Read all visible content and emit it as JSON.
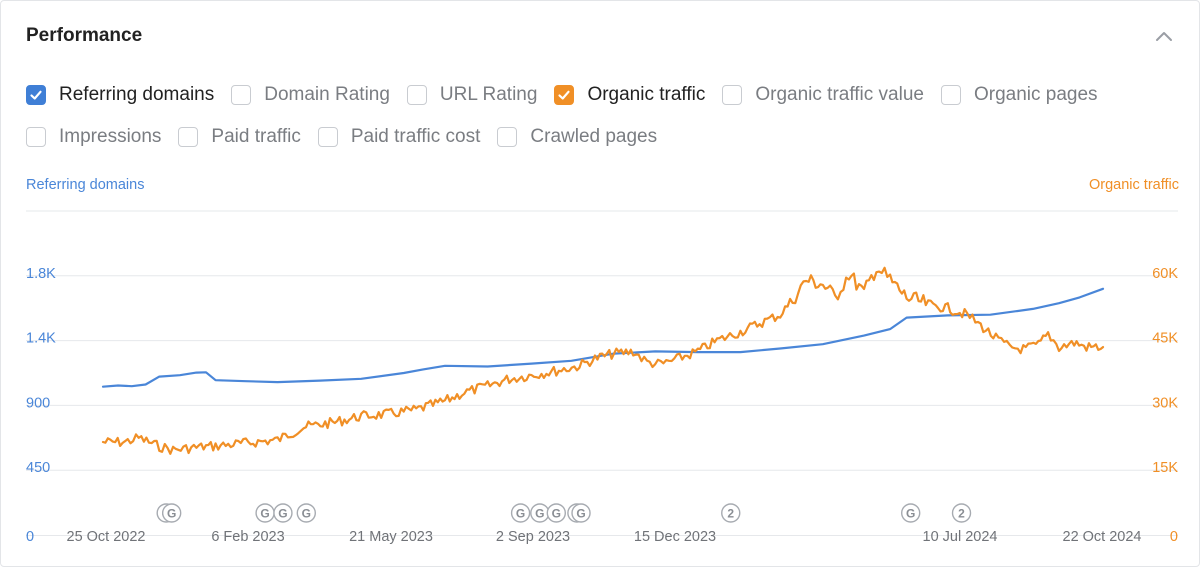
{
  "header": {
    "title": "Performance"
  },
  "metrics": [
    {
      "label": "Referring domains",
      "checked": true,
      "color": "#3f7fd6"
    },
    {
      "label": "Domain Rating",
      "checked": false
    },
    {
      "label": "URL Rating",
      "checked": false
    },
    {
      "label": "Organic traffic",
      "checked": true,
      "color": "#f08f26"
    },
    {
      "label": "Organic traffic value",
      "checked": false
    },
    {
      "label": "Organic pages",
      "checked": false
    },
    {
      "label": "Impressions",
      "checked": false
    },
    {
      "label": "Paid traffic",
      "checked": false
    },
    {
      "label": "Paid traffic cost",
      "checked": false
    },
    {
      "label": "Crawled pages",
      "checked": false
    }
  ],
  "icons": {
    "collapse": "chevron-up-icon",
    "checkmark": "checkmark-icon",
    "annotation": "google-update-marker-icon"
  },
  "colors": {
    "left_axis": "#4a86d8",
    "right_axis": "#f08f26",
    "grid": "#e6e8eb"
  },
  "chart_data": {
    "type": "line",
    "y_left_label": "Referring domains",
    "y_right_label": "Organic traffic",
    "y_left_ticks": [
      "0",
      "450",
      "900",
      "1.4K",
      "1.8K"
    ],
    "y_right_ticks": [
      "0",
      "15K",
      "30K",
      "45K",
      "60K"
    ],
    "y_left_lim": [
      0,
      2250
    ],
    "y_right_lim": [
      0,
      75000
    ],
    "x_tick_labels": [
      "25 Oct 2022",
      "6 Feb 2023",
      "21 May 2023",
      "2 Sep 2023",
      "15 Dec 2023",
      "10 Jul 2024",
      "22 Oct 2024"
    ],
    "x_range": [
      "2022-10-25",
      "2024-10-22"
    ],
    "grid": true,
    "series": [
      {
        "name": "Referring domains",
        "axis": "left",
        "color": "#4a86d8",
        "points": [
          [
            "2022-10-25",
            1030
          ],
          [
            "2022-11-05",
            1038
          ],
          [
            "2022-11-15",
            1033
          ],
          [
            "2022-11-25",
            1045
          ],
          [
            "2022-12-05",
            1100
          ],
          [
            "2022-12-20",
            1110
          ],
          [
            "2023-01-01",
            1128
          ],
          [
            "2023-01-08",
            1130
          ],
          [
            "2023-01-15",
            1075
          ],
          [
            "2023-02-06",
            1068
          ],
          [
            "2023-03-01",
            1062
          ],
          [
            "2023-04-01",
            1072
          ],
          [
            "2023-05-01",
            1085
          ],
          [
            "2023-06-01",
            1125
          ],
          [
            "2023-06-15",
            1150
          ],
          [
            "2023-07-01",
            1175
          ],
          [
            "2023-08-01",
            1170
          ],
          [
            "2023-09-02",
            1190
          ],
          [
            "2023-10-01",
            1210
          ],
          [
            "2023-11-01",
            1260
          ],
          [
            "2023-12-01",
            1275
          ],
          [
            "2024-01-01",
            1270
          ],
          [
            "2024-02-01",
            1270
          ],
          [
            "2024-03-01",
            1295
          ],
          [
            "2024-04-01",
            1325
          ],
          [
            "2024-05-01",
            1385
          ],
          [
            "2024-05-20",
            1430
          ],
          [
            "2024-06-01",
            1510
          ],
          [
            "2024-07-01",
            1525
          ],
          [
            "2024-08-01",
            1530
          ],
          [
            "2024-09-01",
            1570
          ],
          [
            "2024-09-20",
            1610
          ],
          [
            "2024-10-05",
            1650
          ],
          [
            "2024-10-22",
            1710
          ]
        ]
      },
      {
        "name": "Organic traffic",
        "axis": "right",
        "color": "#f08f26",
        "points": [
          [
            "2022-10-25",
            21500
          ],
          [
            "2022-11-10",
            21500
          ],
          [
            "2022-11-20",
            22500
          ],
          [
            "2022-12-05",
            20500
          ],
          [
            "2022-12-15",
            19700
          ],
          [
            "2023-01-01",
            20300
          ],
          [
            "2023-01-15",
            20600
          ],
          [
            "2023-02-06",
            21300
          ],
          [
            "2023-03-01",
            22000
          ],
          [
            "2023-03-20",
            25000
          ],
          [
            "2023-04-10",
            26000
          ],
          [
            "2023-05-01",
            27500
          ],
          [
            "2023-05-21",
            28000
          ],
          [
            "2023-06-10",
            29000
          ],
          [
            "2023-07-01",
            31000
          ],
          [
            "2023-07-15",
            33000
          ],
          [
            "2023-08-01",
            34500
          ],
          [
            "2023-08-15",
            36000
          ],
          [
            "2023-09-02",
            37000
          ],
          [
            "2023-09-20",
            38000
          ],
          [
            "2023-10-05",
            39000
          ],
          [
            "2023-10-20",
            41000
          ],
          [
            "2023-11-01",
            42000
          ],
          [
            "2023-11-15",
            42500
          ],
          [
            "2023-11-25",
            40000
          ],
          [
            "2023-12-05",
            39500
          ],
          [
            "2023-12-15",
            40500
          ],
          [
            "2024-01-01",
            42500
          ],
          [
            "2024-01-15",
            45000
          ],
          [
            "2024-02-01",
            47000
          ],
          [
            "2024-02-15",
            49000
          ],
          [
            "2024-03-01",
            51000
          ],
          [
            "2024-03-10",
            54500
          ],
          [
            "2024-03-20",
            59000
          ],
          [
            "2024-04-01",
            58000
          ],
          [
            "2024-04-10",
            55000
          ],
          [
            "2024-04-20",
            60500
          ],
          [
            "2024-05-01",
            56000
          ],
          [
            "2024-05-10",
            62000
          ],
          [
            "2024-05-20",
            59000
          ],
          [
            "2024-06-01",
            55000
          ],
          [
            "2024-06-15",
            53500
          ],
          [
            "2024-07-01",
            52500
          ],
          [
            "2024-07-15",
            51000
          ],
          [
            "2024-07-25",
            48500
          ],
          [
            "2024-08-05",
            45500
          ],
          [
            "2024-08-15",
            43500
          ],
          [
            "2024-08-25",
            43000
          ],
          [
            "2024-09-05",
            44000
          ],
          [
            "2024-09-12",
            46500
          ],
          [
            "2024-09-20",
            43500
          ],
          [
            "2024-10-01",
            44500
          ],
          [
            "2024-10-10",
            43500
          ],
          [
            "2024-10-22",
            43500
          ]
        ]
      }
    ],
    "annotations": [
      {
        "date": "2022-12-10",
        "label": "G"
      },
      {
        "date": "2022-12-14",
        "label": "G"
      },
      {
        "date": "2023-02-20",
        "label": "G"
      },
      {
        "date": "2023-03-05",
        "label": "G"
      },
      {
        "date": "2023-03-22",
        "label": "G"
      },
      {
        "date": "2023-08-25",
        "label": "G"
      },
      {
        "date": "2023-09-08",
        "label": "G"
      },
      {
        "date": "2023-09-20",
        "label": "G"
      },
      {
        "date": "2023-10-05",
        "label": "G"
      },
      {
        "date": "2023-10-08",
        "label": "G"
      },
      {
        "date": "2024-01-25",
        "label": "2"
      },
      {
        "date": "2024-06-04",
        "label": "G"
      },
      {
        "date": "2024-07-11",
        "label": "2"
      }
    ]
  }
}
